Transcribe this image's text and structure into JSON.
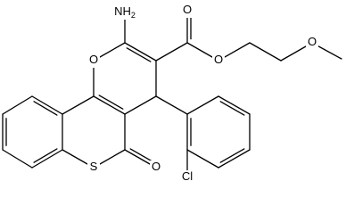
{
  "atoms": [
    {
      "label": "NH",
      "sub": "2"
    },
    {
      "label": "O"
    },
    {
      "label": "O"
    },
    {
      "label": "O"
    },
    {
      "label": "O"
    },
    {
      "label": "O"
    },
    {
      "label": "S"
    },
    {
      "label": "Cl"
    }
  ]
}
